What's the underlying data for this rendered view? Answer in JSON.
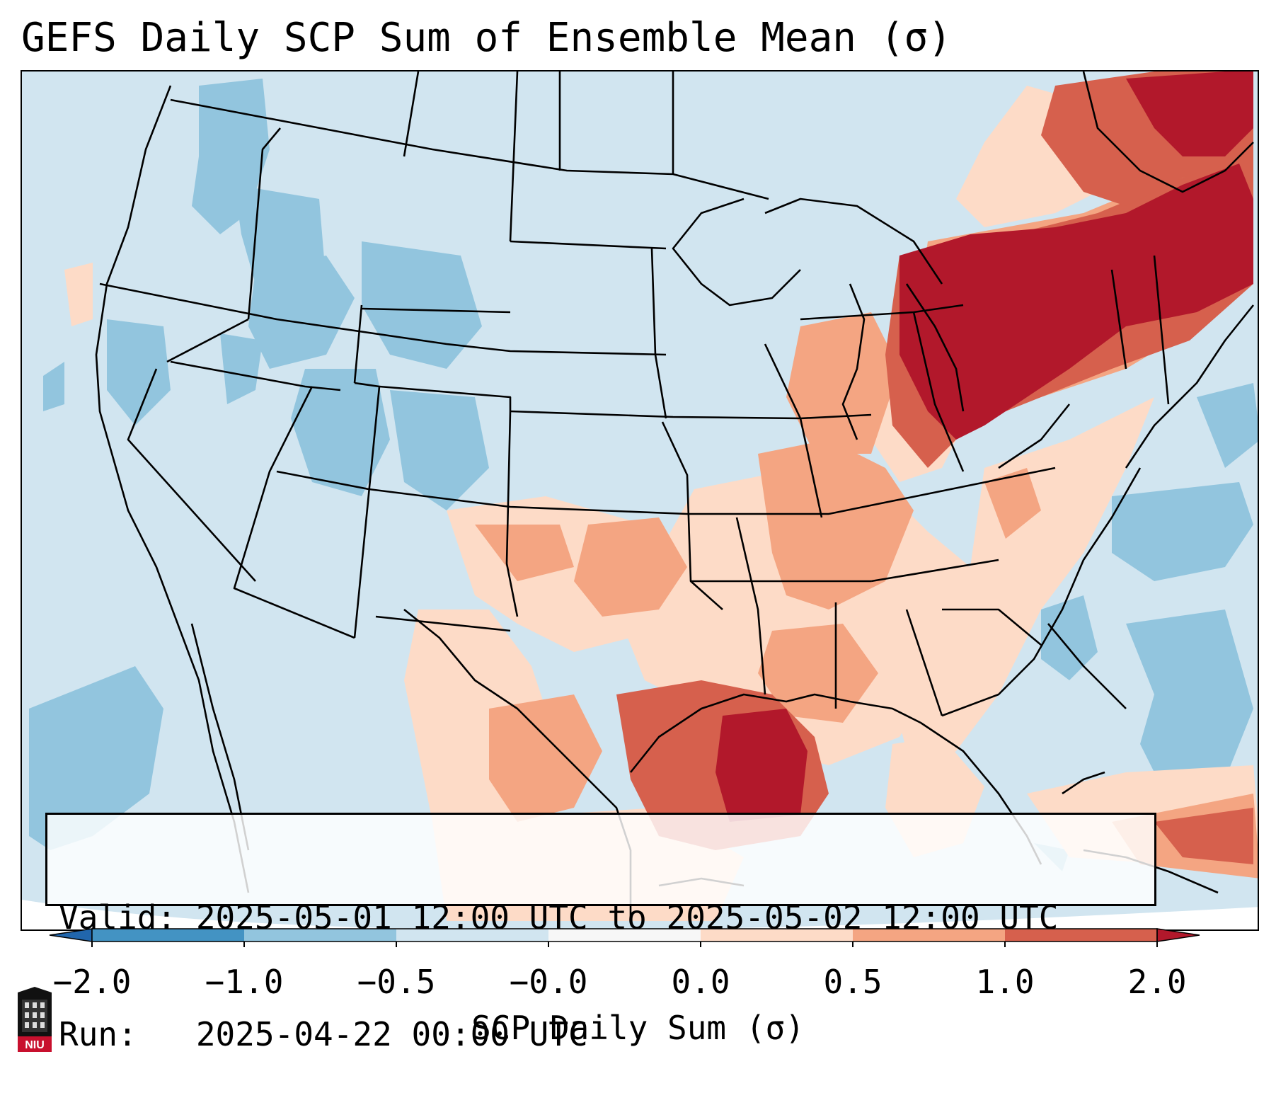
{
  "title": "GEFS Daily SCP Sum of Ensemble Mean (σ)",
  "info": {
    "valid_line": "Valid: 2025-05-01 12:00 UTC to 2025-05-02 12:00 UTC",
    "run_line": "Run:   2025-04-22 00:00 UTC"
  },
  "colorbar": {
    "label": "SCP Daily Sum (σ)",
    "ticks": [
      "−2.0",
      "−1.0",
      "−0.5",
      "−0.0",
      "0.0",
      "0.5",
      "1.0",
      "2.0"
    ],
    "colors": [
      "#4393c3",
      "#92c5de",
      "#d1e5f0",
      "#f7f7f7",
      "#fddbc7",
      "#f4a582",
      "#d6604d",
      "#b2182b"
    ],
    "under_color": "#2166ac",
    "over_color": "#b2182b"
  },
  "logo": {
    "text": "NIU",
    "color": "#c8102e"
  }
}
